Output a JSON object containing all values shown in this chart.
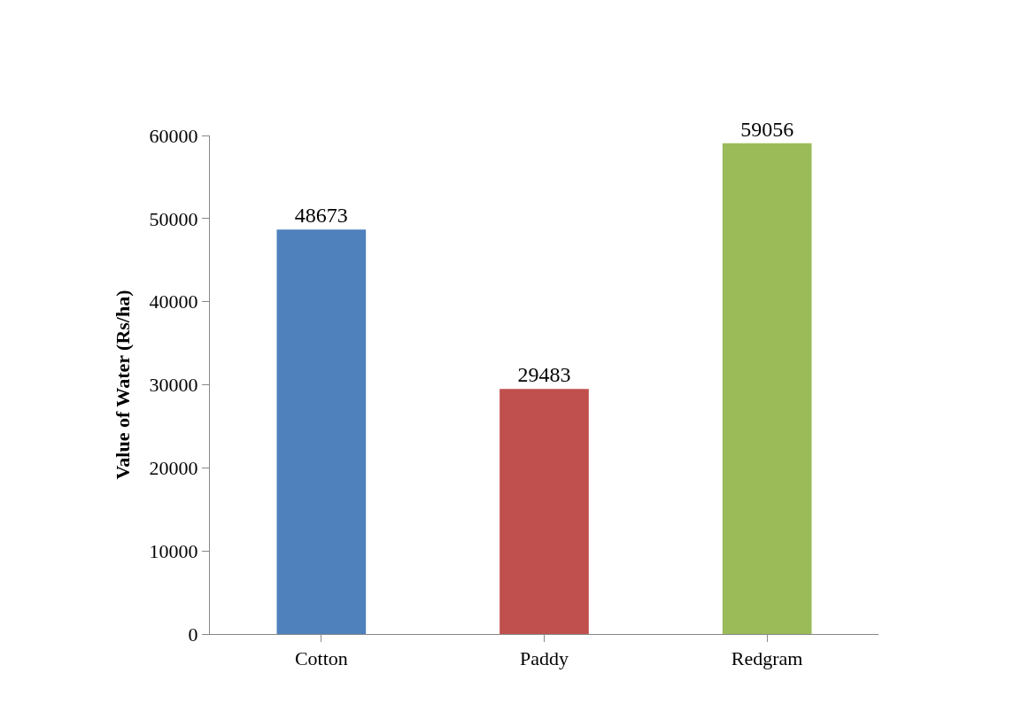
{
  "chart_data": {
    "type": "bar",
    "ylabel": "Value of Water (Rs/ha)",
    "categories": [
      "Cotton",
      "Paddy",
      "Redgram"
    ],
    "values": [
      48673,
      29483,
      59056
    ],
    "colors": [
      "#4f81bd",
      "#c0504d",
      "#9bbb59"
    ],
    "ylim": [
      0,
      60000
    ],
    "yticks": [
      0,
      10000,
      20000,
      30000,
      40000,
      50000,
      60000
    ],
    "data_labels": true
  }
}
